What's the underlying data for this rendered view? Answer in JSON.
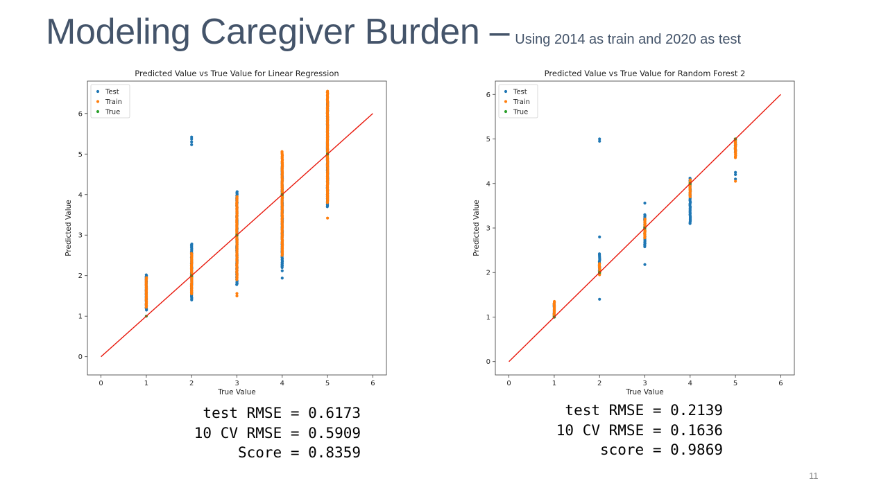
{
  "slide": {
    "title": "Modeling Caregiver Burden –",
    "subtitle": "Using 2014 as train and 2020 as test",
    "page_number": "11"
  },
  "metrics_left": [
    "test RMSE = 0.6173",
    "10 CV RMSE = 0.5909",
    "Score = 0.8359"
  ],
  "metrics_right": [
    "test RMSE = 0.2139",
    "10 CV RMSE = 0.1636",
    "score = 0.9869"
  ],
  "colors": {
    "test": "#1f77b4",
    "train": "#ff7f0e",
    "true": "#2ca02c",
    "ideal_line": "#e8180c",
    "title_text": "#44546a"
  },
  "chart_data": [
    {
      "type": "scatter",
      "title": "Predicted Value vs True Value for Linear Regression",
      "xlabel": "True Value",
      "ylabel": "Predicted Value",
      "xlim": [
        -0.3,
        6.3
      ],
      "ylim": [
        -0.45,
        6.8
      ],
      "xticks": [
        0,
        1,
        2,
        3,
        4,
        5,
        6
      ],
      "yticks": [
        0,
        1,
        2,
        3,
        4,
        5,
        6
      ],
      "legend": [
        "Test",
        "Train",
        "True"
      ],
      "legend_position": "top-left",
      "grid": false,
      "reference_line": {
        "x": [
          0,
          6
        ],
        "y": [
          0,
          6
        ]
      },
      "series": [
        {
          "name": "Test",
          "ranges": [
            {
              "x": 1,
              "ymin": 1.15,
              "ymax": 2.02
            },
            {
              "x": 2,
              "ymin": 1.4,
              "ymax": 2.78
            },
            {
              "x": 3,
              "ymin": 1.78,
              "ymax": 4.07
            },
            {
              "x": 4,
              "ymin": 2.2,
              "ymax": 4.78
            },
            {
              "x": 5,
              "ymin": 3.7,
              "ymax": 6.3
            }
          ],
          "points": [
            [
              2,
              5.42
            ],
            [
              2,
              5.37
            ],
            [
              2,
              5.3
            ],
            [
              2,
              5.23
            ],
            [
              4,
              1.94
            ],
            [
              4,
              2.12
            ],
            [
              4,
              2.24
            ]
          ]
        },
        {
          "name": "Train",
          "ranges": [
            {
              "x": 1,
              "ymin": 1.22,
              "ymax": 1.95
            },
            {
              "x": 2,
              "ymin": 1.55,
              "ymax": 2.55
            },
            {
              "x": 3,
              "ymin": 1.9,
              "ymax": 3.95
            },
            {
              "x": 4,
              "ymin": 2.5,
              "ymax": 5.06
            },
            {
              "x": 5,
              "ymin": 3.8,
              "ymax": 6.55
            }
          ],
          "points": [
            [
              3,
              1.5
            ],
            [
              3,
              1.56
            ],
            [
              5,
              3.42
            ]
          ]
        },
        {
          "name": "True",
          "points": [
            [
              1,
              1
            ],
            [
              2,
              2
            ],
            [
              3,
              3
            ],
            [
              4,
              4
            ],
            [
              5,
              5
            ]
          ]
        }
      ]
    },
    {
      "type": "scatter",
      "title": "Predicted Value vs True Value for Random Forest 2",
      "xlabel": "True Value",
      "ylabel": "Predicted Value",
      "xlim": [
        -0.3,
        6.3
      ],
      "ylim": [
        -0.3,
        6.3
      ],
      "xticks": [
        0,
        1,
        2,
        3,
        4,
        5,
        6
      ],
      "yticks": [
        0,
        1,
        2,
        3,
        4,
        5,
        6
      ],
      "legend": [
        "Test",
        "Train",
        "True"
      ],
      "legend_position": "top-left",
      "grid": false,
      "reference_line": {
        "x": [
          0,
          6
        ],
        "y": [
          0,
          6
        ]
      },
      "series": [
        {
          "name": "Test",
          "ranges": [
            {
              "x": 1,
              "ymin": 1.0,
              "ymax": 1.3
            },
            {
              "x": 2,
              "ymin": 2.0,
              "ymax": 2.42
            },
            {
              "x": 3,
              "ymin": 2.58,
              "ymax": 3.3
            },
            {
              "x": 4,
              "ymin": 3.1,
              "ymax": 4.12
            },
            {
              "x": 5,
              "ymin": 4.7,
              "ymax": 5.0
            }
          ],
          "points": [
            [
              2,
              5.0
            ],
            [
              2,
              4.95
            ],
            [
              2,
              2.8
            ],
            [
              2,
              1.4
            ],
            [
              3,
              3.56
            ],
            [
              3,
              2.18
            ],
            [
              5,
              4.1
            ],
            [
              5,
              4.2
            ],
            [
              5,
              4.25
            ]
          ]
        },
        {
          "name": "Train",
          "ranges": [
            {
              "x": 1,
              "ymin": 1.0,
              "ymax": 1.35
            },
            {
              "x": 2,
              "ymin": 1.95,
              "ymax": 2.2
            },
            {
              "x": 3,
              "ymin": 2.78,
              "ymax": 3.2
            },
            {
              "x": 4,
              "ymin": 3.7,
              "ymax": 4.08
            },
            {
              "x": 5,
              "ymin": 4.58,
              "ymax": 5.0
            }
          ],
          "points": [
            [
              5,
              4.05
            ]
          ]
        },
        {
          "name": "True",
          "points": [
            [
              1,
              1
            ],
            [
              2,
              2
            ],
            [
              3,
              3
            ],
            [
              4,
              4
            ],
            [
              5,
              5
            ]
          ]
        }
      ]
    }
  ]
}
